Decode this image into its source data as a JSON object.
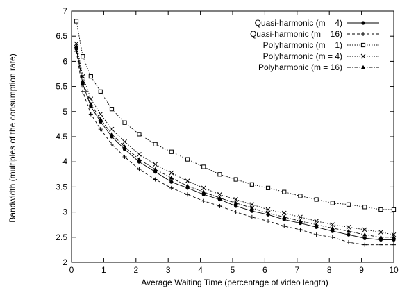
{
  "chart_data": {
    "type": "line",
    "title": "",
    "xlabel": "Average Waiting Time (percentage of video length)",
    "ylabel": "Bandwidth (multiples of the consumption rate)",
    "xlim": [
      0,
      10
    ],
    "ylim": [
      2,
      7
    ],
    "xticks": [
      0,
      1,
      2,
      3,
      4,
      5,
      6,
      7,
      8,
      9,
      10
    ],
    "yticks": [
      2,
      2.5,
      3,
      3.5,
      4,
      4.5,
      5,
      5.5,
      6,
      6.5,
      7
    ],
    "xtick_labels": [
      "0",
      "1",
      "2",
      "3",
      "4",
      "5",
      "6",
      "7",
      "8",
      "9",
      "10"
    ],
    "ytick_labels": [
      "2",
      "2.5",
      "3",
      "3.5",
      "4",
      "4.5",
      "5",
      "5.5",
      "6",
      "6.5",
      "7"
    ],
    "grid": false,
    "legend_position": "top-right",
    "x": [
      0.15,
      0.35,
      0.6,
      0.9,
      1.25,
      1.65,
      2.1,
      2.6,
      3.1,
      3.6,
      4.1,
      4.6,
      5.1,
      5.6,
      6.1,
      6.6,
      7.1,
      7.6,
      8.1,
      8.6,
      9.1,
      9.6,
      10.0
    ],
    "series": [
      {
        "name": "Quasi-harmonic (m =  4)",
        "marker": "filled-circle",
        "line": "solid",
        "values": [
          6.25,
          5.55,
          5.1,
          4.8,
          4.5,
          4.25,
          4.0,
          3.8,
          3.6,
          3.48,
          3.35,
          3.25,
          3.12,
          3.02,
          2.95,
          2.85,
          2.78,
          2.7,
          2.62,
          2.55,
          2.48,
          2.45,
          2.45
        ]
      },
      {
        "name": "Quasi-harmonic (m = 16)",
        "marker": "plus",
        "line": "dashed",
        "values": [
          6.2,
          5.4,
          4.95,
          4.65,
          4.35,
          4.1,
          3.85,
          3.65,
          3.48,
          3.35,
          3.22,
          3.12,
          3.0,
          2.9,
          2.82,
          2.72,
          2.65,
          2.55,
          2.5,
          2.4,
          2.35,
          2.35,
          2.35
        ]
      },
      {
        "name": "Polyharmonic (m =  1)",
        "marker": "open-square",
        "line": "dotted",
        "values": [
          6.8,
          6.1,
          5.7,
          5.4,
          5.05,
          4.78,
          4.55,
          4.35,
          4.2,
          4.05,
          3.9,
          3.75,
          3.65,
          3.55,
          3.48,
          3.4,
          3.32,
          3.25,
          3.18,
          3.15,
          3.1,
          3.05,
          3.05
        ]
      },
      {
        "name": "Polyharmonic (m =  4)",
        "marker": "cross",
        "line": "dotted",
        "values": [
          6.35,
          5.7,
          5.25,
          4.95,
          4.65,
          4.4,
          4.15,
          3.95,
          3.78,
          3.62,
          3.48,
          3.35,
          3.25,
          3.15,
          3.05,
          2.98,
          2.9,
          2.82,
          2.75,
          2.7,
          2.65,
          2.6,
          2.55
        ]
      },
      {
        "name": "Polyharmonic (m = 16)",
        "marker": "filled-triangle",
        "line": "dash-dot",
        "values": [
          6.3,
          5.6,
          5.15,
          4.85,
          4.55,
          4.3,
          4.05,
          3.85,
          3.68,
          3.52,
          3.4,
          3.28,
          3.18,
          3.08,
          2.98,
          2.9,
          2.82,
          2.75,
          2.68,
          2.62,
          2.55,
          2.5,
          2.5
        ]
      }
    ]
  }
}
